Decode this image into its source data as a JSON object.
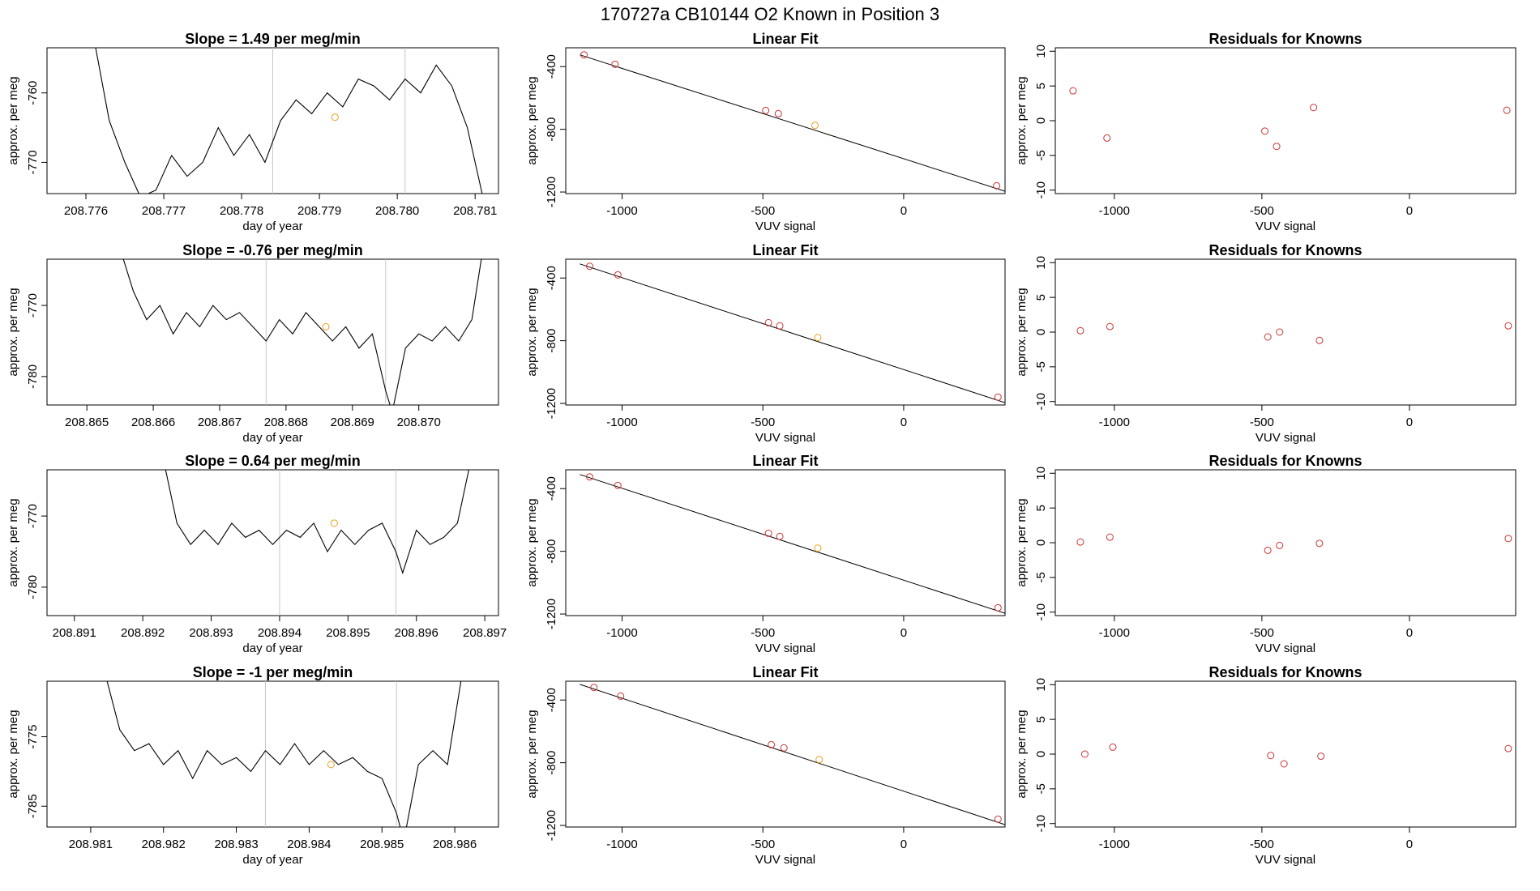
{
  "main_title": "170727a     CB10144    O2 Known in Position  3",
  "colors": {
    "line": "#000000",
    "point_red": "#cc3333",
    "point_orange": "#e8a020",
    "vline": "#c8c8c8"
  },
  "chart_data": [
    {
      "id": "r1-ts",
      "type": "line",
      "title": "Slope =  1.49  per meg/min",
      "xlabel": "day of year",
      "ylabel": "approx. per meg",
      "xlim": [
        208.7755,
        208.7813
      ],
      "ylim": [
        -774.5,
        -753.5
      ],
      "xticks": [
        208.776,
        208.777,
        208.778,
        208.779,
        208.78,
        208.781
      ],
      "xticklabels": [
        "208.776",
        "208.777",
        "208.778",
        "208.779",
        "208.780",
        "208.781"
      ],
      "yticks": [
        -760,
        -770
      ],
      "yticklabels": [
        "-760",
        "-770"
      ],
      "vlines": [
        208.7784,
        208.7801
      ],
      "series": [
        {
          "x": [
            208.7761,
            208.7763,
            208.7765,
            208.7767,
            208.7769,
            208.7771,
            208.7773,
            208.7775,
            208.7777,
            208.7779,
            208.7781,
            208.7783,
            208.7785,
            208.7787,
            208.7789,
            208.7791,
            208.7793,
            208.7795,
            208.7797,
            208.7799,
            208.7801,
            208.7803,
            208.7805,
            208.7807,
            208.7809,
            208.7811
          ],
          "y": [
            -752,
            -764,
            -770,
            -775,
            -774,
            -769,
            -772,
            -770,
            -765,
            -769,
            -766,
            -770,
            -764,
            -761,
            -763,
            -760,
            -762,
            -758,
            -759,
            -761,
            -758,
            -760,
            -756,
            -759,
            -765,
            -775
          ]
        }
      ],
      "marker": {
        "x": 208.7792,
        "y": -763.5
      }
    },
    {
      "id": "r2-ts",
      "type": "line",
      "title": "Slope =  -0.76  per meg/min",
      "xlabel": "day of year",
      "ylabel": "approx. per meg",
      "xlim": [
        208.8644,
        208.8712
      ],
      "ylim": [
        -784,
        -763.5
      ],
      "xticks": [
        208.865,
        208.866,
        208.867,
        208.868,
        208.869,
        208.87
      ],
      "xticklabels": [
        "208.865",
        "208.866",
        "208.867",
        "208.868",
        "208.869",
        "208.870"
      ],
      "yticks": [
        -770,
        -780
      ],
      "yticklabels": [
        "-770",
        "-780"
      ],
      "vlines": [
        208.8677,
        208.8695
      ],
      "series": [
        {
          "x": [
            208.8655,
            208.8657,
            208.8659,
            208.8661,
            208.8663,
            208.8665,
            208.8667,
            208.8669,
            208.8671,
            208.8673,
            208.8675,
            208.8677,
            208.8679,
            208.8681,
            208.8683,
            208.8685,
            208.8687,
            208.8689,
            208.8691,
            208.8693,
            208.8695,
            208.8696,
            208.8698,
            208.87,
            208.8702,
            208.8704,
            208.8706,
            208.8708,
            208.871
          ],
          "y": [
            -762,
            -768,
            -772,
            -770,
            -774,
            -771,
            -773,
            -770,
            -772,
            -771,
            -773,
            -775,
            -772,
            -774,
            -771,
            -773,
            -775,
            -773,
            -776,
            -774,
            -782,
            -785,
            -776,
            -774,
            -775,
            -773,
            -775,
            -772,
            -760
          ]
        }
      ],
      "marker": {
        "x": 208.8686,
        "y": -773
      }
    },
    {
      "id": "r3-ts",
      "type": "line",
      "title": "Slope =  0.64  per meg/min",
      "xlabel": "day of year",
      "ylabel": "approx. per meg",
      "xlim": [
        208.8906,
        208.8972
      ],
      "ylim": [
        -784,
        -763.5
      ],
      "xticks": [
        208.891,
        208.892,
        208.893,
        208.894,
        208.895,
        208.896,
        208.897
      ],
      "xticklabels": [
        "208.891",
        "208.892",
        "208.893",
        "208.894",
        "208.895",
        "208.896",
        "208.897"
      ],
      "yticks": [
        -770,
        -780
      ],
      "yticklabels": [
        "-770",
        "-780"
      ],
      "vlines": [
        208.894,
        208.8957
      ],
      "series": [
        {
          "x": [
            208.8923,
            208.8925,
            208.8927,
            208.8929,
            208.8931,
            208.8933,
            208.8935,
            208.8937,
            208.8939,
            208.8941,
            208.8943,
            208.8945,
            208.8947,
            208.8949,
            208.8951,
            208.8953,
            208.8955,
            208.8957,
            208.8958,
            208.896,
            208.8962,
            208.8964,
            208.8966,
            208.8968
          ],
          "y": [
            -762,
            -771,
            -774,
            -772,
            -774,
            -771,
            -773,
            -772,
            -774,
            -772,
            -773,
            -771,
            -775,
            -772,
            -774,
            -772,
            -771,
            -775,
            -778,
            -772,
            -774,
            -773,
            -771,
            -762
          ]
        }
      ],
      "marker": {
        "x": 208.8948,
        "y": -771
      }
    },
    {
      "id": "r4-ts",
      "type": "line",
      "title": "Slope =  -1  per meg/min",
      "xlabel": "day of year",
      "ylabel": "approx. per meg",
      "xlim": [
        208.9804,
        208.9866
      ],
      "ylim": [
        -788,
        -767
      ],
      "xticks": [
        208.981,
        208.982,
        208.983,
        208.984,
        208.985,
        208.986
      ],
      "xticklabels": [
        "208.981",
        "208.982",
        "208.983",
        "208.984",
        "208.985",
        "208.986"
      ],
      "yticks": [
        -775,
        -785
      ],
      "yticklabels": [
        "-775",
        "-785"
      ],
      "vlines": [
        208.9834,
        208.9852
      ],
      "series": [
        {
          "x": [
            208.9812,
            208.9814,
            208.9816,
            208.9818,
            208.982,
            208.9822,
            208.9824,
            208.9826,
            208.9828,
            208.983,
            208.9832,
            208.9834,
            208.9836,
            208.9838,
            208.984,
            208.9842,
            208.9844,
            208.9846,
            208.9848,
            208.985,
            208.9852,
            208.9853,
            208.9855,
            208.9857,
            208.9859,
            208.9861
          ],
          "y": [
            -766,
            -774,
            -777,
            -776,
            -779,
            -777,
            -781,
            -777,
            -779,
            -778,
            -780,
            -777,
            -779,
            -776,
            -779,
            -777,
            -779,
            -778,
            -780,
            -781,
            -786,
            -790,
            -779,
            -777,
            -779,
            -766
          ]
        }
      ],
      "marker": {
        "x": 208.9843,
        "y": -779
      }
    },
    {
      "id": "r1-fit",
      "type": "scatter",
      "title": "Linear Fit",
      "xlabel": "VUV signal",
      "ylabel": "approx. per meg",
      "xlim": [
        -1200,
        360
      ],
      "ylim": [
        -1210,
        -280
      ],
      "xticks": [
        -1000,
        -500,
        0
      ],
      "xticklabels": [
        "-1000",
        "-500",
        "0"
      ],
      "yticks": [
        -400,
        -800,
        -1200
      ],
      "yticklabels": [
        "-400",
        "-800",
        "-1200"
      ],
      "fit_line": {
        "x": [
          -1150,
          360
        ],
        "y": [
          -325,
          -1195
        ]
      },
      "points": [
        {
          "x": -1135,
          "y": -325,
          "c": "red"
        },
        {
          "x": -1025,
          "y": -385,
          "c": "red"
        },
        {
          "x": -490,
          "y": -680,
          "c": "red"
        },
        {
          "x": -445,
          "y": -700,
          "c": "red"
        },
        {
          "x": -315,
          "y": -775,
          "c": "orange"
        },
        {
          "x": 330,
          "y": -1160,
          "c": "red"
        }
      ]
    },
    {
      "id": "r2-fit",
      "type": "scatter",
      "title": "Linear Fit",
      "xlabel": "VUV signal",
      "ylabel": "approx. per meg",
      "xlim": [
        -1200,
        360
      ],
      "ylim": [
        -1210,
        -280
      ],
      "xticks": [
        -1000,
        -500,
        0
      ],
      "xticklabels": [
        "-1000",
        "-500",
        "0"
      ],
      "yticks": [
        -400,
        -800,
        -1200
      ],
      "yticklabels": [
        "-400",
        "-800",
        "-1200"
      ],
      "fit_line": {
        "x": [
          -1150,
          360
        ],
        "y": [
          -310,
          -1195
        ]
      },
      "points": [
        {
          "x": -1115,
          "y": -325,
          "c": "red"
        },
        {
          "x": -1015,
          "y": -380,
          "c": "red"
        },
        {
          "x": -480,
          "y": -685,
          "c": "red"
        },
        {
          "x": -440,
          "y": -705,
          "c": "red"
        },
        {
          "x": -305,
          "y": -780,
          "c": "orange"
        },
        {
          "x": 335,
          "y": -1160,
          "c": "red"
        }
      ]
    },
    {
      "id": "r3-fit",
      "type": "scatter",
      "title": "Linear Fit",
      "xlabel": "VUV signal",
      "ylabel": "approx. per meg",
      "xlim": [
        -1200,
        360
      ],
      "ylim": [
        -1210,
        -280
      ],
      "xticks": [
        -1000,
        -500,
        0
      ],
      "xticklabels": [
        "-1000",
        "-500",
        "0"
      ],
      "yticks": [
        -400,
        -800,
        -1200
      ],
      "yticklabels": [
        "-400",
        "-800",
        "-1200"
      ],
      "fit_line": {
        "x": [
          -1150,
          360
        ],
        "y": [
          -310,
          -1195
        ]
      },
      "points": [
        {
          "x": -1115,
          "y": -325,
          "c": "red"
        },
        {
          "x": -1015,
          "y": -380,
          "c": "red"
        },
        {
          "x": -480,
          "y": -685,
          "c": "red"
        },
        {
          "x": -440,
          "y": -705,
          "c": "red"
        },
        {
          "x": -305,
          "y": -780,
          "c": "orange"
        },
        {
          "x": 335,
          "y": -1160,
          "c": "red"
        }
      ]
    },
    {
      "id": "r4-fit",
      "type": "scatter",
      "title": "Linear Fit",
      "xlabel": "VUV signal",
      "ylabel": "approx. per meg",
      "xlim": [
        -1200,
        360
      ],
      "ylim": [
        -1210,
        -280
      ],
      "xticks": [
        -1000,
        -500,
        0
      ],
      "xticklabels": [
        "-1000",
        "-500",
        "0"
      ],
      "yticks": [
        -400,
        -800,
        -1200
      ],
      "yticklabels": [
        "-400",
        "-800",
        "-1200"
      ],
      "fit_line": {
        "x": [
          -1150,
          360
        ],
        "y": [
          -300,
          -1195
        ]
      },
      "points": [
        {
          "x": -1100,
          "y": -320,
          "c": "red"
        },
        {
          "x": -1005,
          "y": -375,
          "c": "red"
        },
        {
          "x": -470,
          "y": -685,
          "c": "red"
        },
        {
          "x": -425,
          "y": -705,
          "c": "red"
        },
        {
          "x": -300,
          "y": -780,
          "c": "orange"
        },
        {
          "x": 335,
          "y": -1160,
          "c": "red"
        }
      ]
    },
    {
      "id": "r1-res",
      "type": "scatter",
      "title": "Residuals for Knowns",
      "xlabel": "VUV signal",
      "ylabel": "approx. per meg",
      "xlim": [
        -1200,
        360
      ],
      "ylim": [
        -10.5,
        10.5
      ],
      "xticks": [
        -1000,
        -500,
        0
      ],
      "xticklabels": [
        "-1000",
        "-500",
        "0"
      ],
      "yticks": [
        10,
        5,
        0,
        -5,
        -10
      ],
      "yticklabels": [
        "10",
        "5",
        "0",
        "-5",
        "-10"
      ],
      "points": [
        {
          "x": -1140,
          "y": 4.3,
          "c": "red"
        },
        {
          "x": -1025,
          "y": -2.5,
          "c": "red"
        },
        {
          "x": -490,
          "y": -1.5,
          "c": "red"
        },
        {
          "x": -450,
          "y": -3.7,
          "c": "red"
        },
        {
          "x": -325,
          "y": 1.9,
          "c": "red"
        },
        {
          "x": 330,
          "y": 1.5,
          "c": "red"
        }
      ]
    },
    {
      "id": "r2-res",
      "type": "scatter",
      "title": "Residuals for Knowns",
      "xlabel": "VUV signal",
      "ylabel": "approx. per meg",
      "xlim": [
        -1200,
        360
      ],
      "ylim": [
        -10.5,
        10.5
      ],
      "xticks": [
        -1000,
        -500,
        0
      ],
      "xticklabels": [
        "-1000",
        "-500",
        "0"
      ],
      "yticks": [
        10,
        5,
        0,
        -5,
        -10
      ],
      "yticklabels": [
        "10",
        "5",
        "0",
        "-5",
        "-10"
      ],
      "points": [
        {
          "x": -1115,
          "y": 0.2,
          "c": "red"
        },
        {
          "x": -1015,
          "y": 0.8,
          "c": "red"
        },
        {
          "x": -480,
          "y": -0.7,
          "c": "red"
        },
        {
          "x": -440,
          "y": 0.0,
          "c": "red"
        },
        {
          "x": -305,
          "y": -1.2,
          "c": "red"
        },
        {
          "x": 335,
          "y": 0.9,
          "c": "red"
        }
      ]
    },
    {
      "id": "r3-res",
      "type": "scatter",
      "title": "Residuals for Knowns",
      "xlabel": "VUV signal",
      "ylabel": "approx. per meg",
      "xlim": [
        -1200,
        360
      ],
      "ylim": [
        -10.5,
        10.5
      ],
      "xticks": [
        -1000,
        -500,
        0
      ],
      "xticklabels": [
        "-1000",
        "-500",
        "0"
      ],
      "yticks": [
        10,
        5,
        0,
        -5,
        -10
      ],
      "yticklabels": [
        "10",
        "5",
        "0",
        "-5",
        "-10"
      ],
      "points": [
        {
          "x": -1115,
          "y": 0.1,
          "c": "red"
        },
        {
          "x": -1015,
          "y": 0.8,
          "c": "red"
        },
        {
          "x": -480,
          "y": -1.1,
          "c": "red"
        },
        {
          "x": -440,
          "y": -0.4,
          "c": "red"
        },
        {
          "x": -305,
          "y": -0.1,
          "c": "red"
        },
        {
          "x": 335,
          "y": 0.6,
          "c": "red"
        }
      ]
    },
    {
      "id": "r4-res",
      "type": "scatter",
      "title": "Residuals for Knowns",
      "xlabel": "VUV signal",
      "ylabel": "approx. per meg",
      "xlim": [
        -1200,
        360
      ],
      "ylim": [
        -10.5,
        10.5
      ],
      "xticks": [
        -1000,
        -500,
        0
      ],
      "xticklabels": [
        "-1000",
        "-500",
        "0"
      ],
      "yticks": [
        10,
        5,
        0,
        -5,
        -10
      ],
      "yticklabels": [
        "10",
        "5",
        "0",
        "-5",
        "-10"
      ],
      "points": [
        {
          "x": -1100,
          "y": 0.0,
          "c": "red"
        },
        {
          "x": -1005,
          "y": 1.0,
          "c": "red"
        },
        {
          "x": -470,
          "y": -0.2,
          "c": "red"
        },
        {
          "x": -425,
          "y": -1.4,
          "c": "red"
        },
        {
          "x": -300,
          "y": -0.3,
          "c": "red"
        },
        {
          "x": 335,
          "y": 0.8,
          "c": "red"
        }
      ]
    }
  ]
}
